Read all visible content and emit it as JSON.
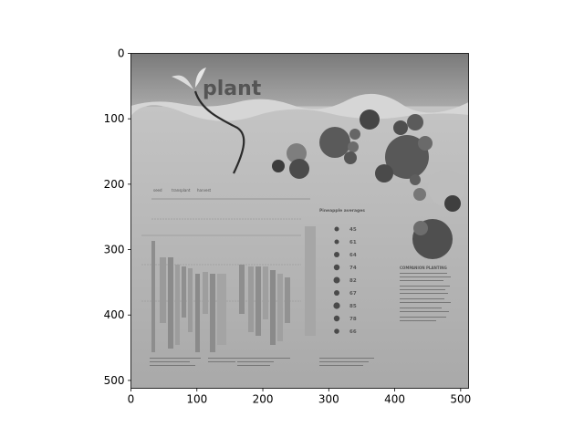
{
  "chart_data": {
    "type": "image",
    "title": "",
    "xlabel": "",
    "ylabel": "",
    "xlim": [
      0,
      512
    ],
    "ylim": [
      512,
      0
    ],
    "x_ticks": [
      0,
      100,
      200,
      300,
      400,
      500
    ],
    "y_ticks": [
      0,
      100,
      200,
      300,
      400,
      500
    ],
    "x_tick_labels": [
      "0",
      "100",
      "200",
      "300",
      "400",
      "500"
    ],
    "y_tick_labels": [
      "0",
      "100",
      "200",
      "300",
      "400",
      "500"
    ],
    "grid": false,
    "legend": "none",
    "image": {
      "colormap": "grayscale",
      "visible_text": {
        "logo": "plant",
        "phase_labels": [
          "seed",
          "transplant",
          "harvest"
        ],
        "key_heading": "Pineapple averages",
        "key_values": [
          "45",
          "61",
          "64",
          "74",
          "82",
          "67",
          "85",
          "78",
          "66"
        ],
        "side_heading": "COMPANION PLANTING"
      }
    }
  }
}
